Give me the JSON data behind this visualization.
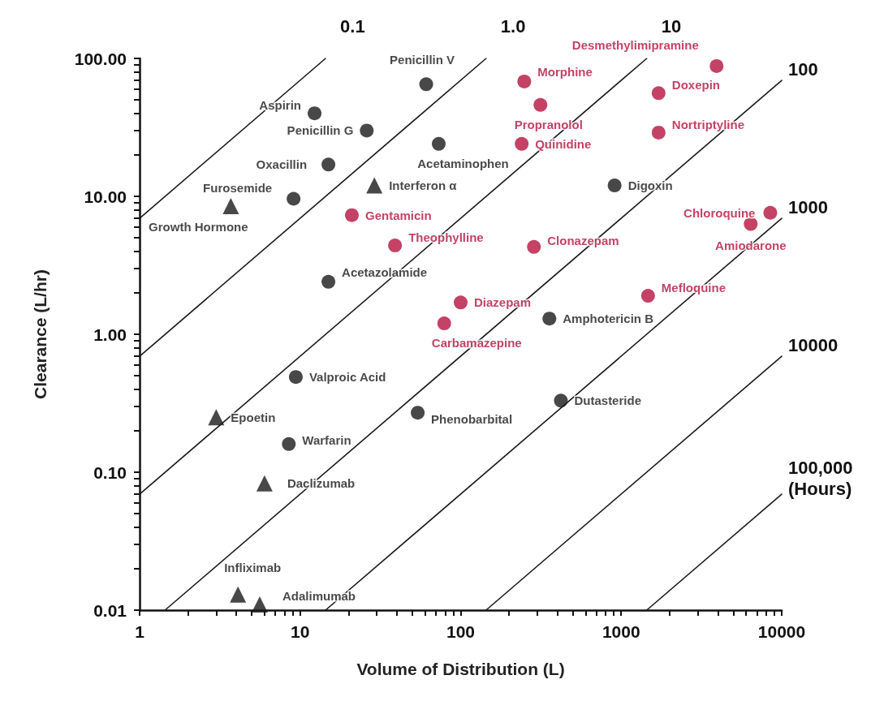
{
  "chart_data": {
    "type": "scatter",
    "xlabel": "Volume of Distribution (L)",
    "ylabel": "Clearance (L/hr)",
    "log": "xy",
    "grid": false,
    "legend": false,
    "xlim": [
      1,
      10000
    ],
    "ylim": [
      0.01,
      100
    ],
    "xticks": [
      1,
      {
        "value": 2,
        "label": null
      },
      {
        "value": 3,
        "label": null
      },
      {
        "value": 4,
        "label": null
      },
      {
        "value": 5,
        "label": null
      },
      {
        "value": 6,
        "label": null
      },
      {
        "value": 7,
        "label": null
      },
      {
        "value": 8,
        "label": null
      },
      {
        "value": 9,
        "label": null
      },
      10,
      {
        "value": 20,
        "label": null
      },
      {
        "value": 30,
        "label": null
      },
      {
        "value": 40,
        "label": null
      },
      {
        "value": 50,
        "label": null
      },
      {
        "value": 60,
        "label": null
      },
      {
        "value": 70,
        "label": null
      },
      {
        "value": 80,
        "label": null
      },
      {
        "value": 90,
        "label": null
      },
      100,
      {
        "value": 200,
        "label": null
      },
      {
        "value": 300,
        "label": null
      },
      {
        "value": 400,
        "label": null
      },
      {
        "value": 500,
        "label": null
      },
      {
        "value": 600,
        "label": null
      },
      {
        "value": 700,
        "label": null
      },
      {
        "value": 800,
        "label": null
      },
      {
        "value": 900,
        "label": null
      },
      1000,
      {
        "value": 2000,
        "label": null
      },
      {
        "value": 3000,
        "label": null
      },
      {
        "value": 4000,
        "label": null
      },
      {
        "value": 5000,
        "label": null
      },
      {
        "value": 6000,
        "label": null
      },
      {
        "value": 7000,
        "label": null
      },
      {
        "value": 8000,
        "label": null
      },
      {
        "value": 9000,
        "label": null
      },
      10000
    ],
    "yticks": [
      {
        "value": 0.01,
        "label": "0.01"
      },
      {
        "value": 0.02,
        "label": null
      },
      {
        "value": 0.03,
        "label": null
      },
      {
        "value": 0.04,
        "label": null
      },
      {
        "value": 0.05,
        "label": null
      },
      {
        "value": 0.06,
        "label": null
      },
      {
        "value": 0.07,
        "label": null
      },
      {
        "value": 0.08,
        "label": null
      },
      {
        "value": 0.09,
        "label": null
      },
      {
        "value": 0.1,
        "label": "0.10"
      },
      {
        "value": 0.2,
        "label": null
      },
      {
        "value": 0.3,
        "label": null
      },
      {
        "value": 0.4,
        "label": null
      },
      {
        "value": 0.5,
        "label": null
      },
      {
        "value": 0.6,
        "label": null
      },
      {
        "value": 0.7,
        "label": null
      },
      {
        "value": 0.8,
        "label": null
      },
      {
        "value": 0.9,
        "label": null
      },
      {
        "value": 1,
        "label": "1.00"
      },
      {
        "value": 2,
        "label": null
      },
      {
        "value": 3,
        "label": null
      },
      {
        "value": 4,
        "label": null
      },
      {
        "value": 5,
        "label": null
      },
      {
        "value": 6,
        "label": null
      },
      {
        "value": 7,
        "label": null
      },
      {
        "value": 8,
        "label": null
      },
      {
        "value": 9,
        "label": null
      },
      {
        "value": 10,
        "label": "10.00"
      },
      {
        "value": 20,
        "label": null
      },
      {
        "value": 30,
        "label": null
      },
      {
        "value": 40,
        "label": null
      },
      {
        "value": 50,
        "label": null
      },
      {
        "value": 60,
        "label": null
      },
      {
        "value": 70,
        "label": null
      },
      {
        "value": 80,
        "label": null
      },
      {
        "value": 90,
        "label": null
      },
      {
        "value": 100,
        "label": "100.00"
      }
    ],
    "series": [
      {
        "type": "line",
        "name": "0.1",
        "color": "#1a1a1a",
        "marker": "none",
        "x": [
          1,
          14.4
        ],
        "values": [
          6.93,
          100
        ]
      },
      {
        "type": "line",
        "name": "1.0",
        "color": "#1a1a1a",
        "marker": "none",
        "x": [
          1,
          144
        ],
        "values": [
          0.693,
          100
        ]
      },
      {
        "type": "line",
        "name": "10",
        "color": "#1a1a1a",
        "marker": "none",
        "x": [
          1,
          1443
        ],
        "values": [
          0.0693,
          100
        ]
      },
      {
        "type": "line",
        "name": "100",
        "color": "#1a1a1a",
        "marker": "none",
        "x": [
          1.44,
          10000
        ],
        "values": [
          0.01,
          69.3
        ]
      },
      {
        "type": "line",
        "name": "1000",
        "color": "#1a1a1a",
        "marker": "none",
        "x": [
          14.4,
          10000
        ],
        "values": [
          0.01,
          6.93
        ]
      },
      {
        "type": "line",
        "name": "10000",
        "color": "#1a1a1a",
        "marker": "none",
        "x": [
          144,
          10000
        ],
        "values": [
          0.01,
          0.693
        ]
      },
      {
        "type": "line",
        "name": "100,000 (Hours)",
        "color": "#1a1a1a",
        "marker": "none",
        "x": [
          1443,
          10000
        ],
        "values": [
          0.01,
          0.0693
        ]
      },
      {
        "marker": "circle",
        "color": "#1a1a1a",
        "x": [
          61,
          12.3,
          26,
          73,
          15,
          9.1,
          15,
          910,
          357,
          9.4,
          54,
          421,
          8.5
        ],
        "values": [
          65,
          40,
          30,
          24,
          17,
          9.6,
          2.4,
          12,
          1.3,
          0.49,
          0.27,
          0.33,
          0.16
        ],
        "value_labels": [
          "Penicillin V",
          "Aspirin",
          "Penicillin G",
          "Acetaminophen",
          "Oxacillin",
          "Furosemide",
          "Acetazolamide",
          "Digoxin",
          "Amphotericin B",
          "Valproic Acid",
          "Phenobarbital",
          "Dutasteride",
          "Warfarin"
        ]
      },
      {
        "marker": "circle",
        "color": "#b5133f",
        "x": [
          3930,
          249,
          1710,
          314,
          1710,
          240,
          21,
          39,
          286,
          8490,
          6410,
          1470,
          100,
          79
        ],
        "values": [
          88,
          68,
          56,
          46,
          29,
          24,
          7.3,
          4.4,
          4.3,
          7.6,
          6.3,
          1.9,
          1.7,
          1.2
        ],
        "value_labels": [
          "Desmethylimipramine",
          "Morphine",
          "Doxepin",
          "Propranolol",
          "Nortriptyline",
          "Quinidine",
          "Gentamicin",
          "Theophylline",
          "Clonazepam",
          "Chloroquine",
          "Amiodarone",
          "Mefloquine",
          "Diazepam",
          "Carbamazepine"
        ]
      },
      {
        "marker": "triangle",
        "color": "#1a1a1a",
        "x": [
          29,
          3.7,
          3.0,
          6.0,
          4.1,
          5.6
        ],
        "values": [
          12,
          8.5,
          0.25,
          0.083,
          0.013,
          0.011
        ],
        "value_labels": [
          "Interferon α",
          "Growth Hormone",
          "Epoetin",
          "Daclizumab",
          "Infliximab",
          "Adalimumab"
        ]
      }
    ]
  }
}
